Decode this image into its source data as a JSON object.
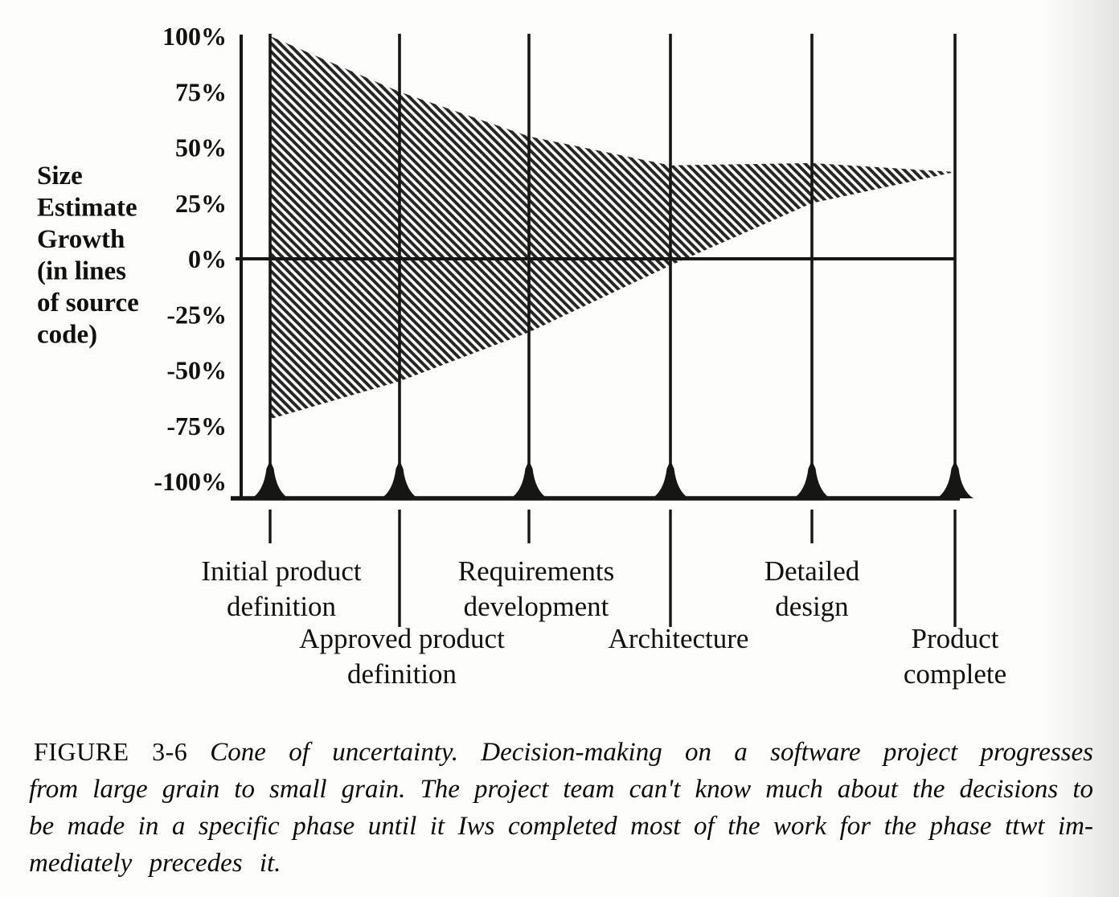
{
  "colors": {
    "ink": "#161616",
    "paper": "#fdfdfc"
  },
  "figure": {
    "caption": {
      "figure_label": "FIGURE 3-6",
      "line1_rest": "Cone of uncertainty. Decision-making on a software project progresses",
      "lines": [
        "from large grain to small grain. The project team can't know much about the decisions to",
        "be made in a specific phase until it Iws completed most of the work for the phase ttwt im-",
        "mediately precedes it."
      ]
    }
  },
  "chart_data": {
    "type": "area",
    "title": "",
    "ylabel": "Size Estimate Growth (in lines of source code)",
    "ylabel_lines": [
      "Size",
      "Estimate",
      "Growth",
      "(in lines",
      "of source",
      "code)"
    ],
    "ylim": [
      -100,
      100
    ],
    "grid": false,
    "legend": "none",
    "fill_style": "diagonal-hatch",
    "y_ticks": [
      {
        "label": "100%",
        "value": 100
      },
      {
        "label": "75%",
        "value": 75
      },
      {
        "label": "50%",
        "value": 50
      },
      {
        "label": "25%",
        "value": 25
      },
      {
        "label": "0%",
        "value": 0
      },
      {
        "label": "-25%",
        "value": -25
      },
      {
        "label": "-50%",
        "value": -50
      },
      {
        "label": "-75%",
        "value": -75
      },
      {
        "label": "-100%",
        "value": -100
      }
    ],
    "categories": [
      "Initial product definition",
      "Approved product definition",
      "Requirements development",
      "Architecture",
      "Detailed design",
      "Product complete"
    ],
    "milestones": [
      {
        "label_lines": [
          "Initial product",
          "definition"
        ],
        "row": 1
      },
      {
        "label_lines": [
          "Approved product",
          "definition"
        ],
        "row": 2
      },
      {
        "label_lines": [
          "Requirements",
          "development"
        ],
        "row": 1
      },
      {
        "label_lines": [
          "Architecture"
        ],
        "row": 2
      },
      {
        "label_lines": [
          "Detailed",
          "design"
        ],
        "row": 1
      },
      {
        "label_lines": [
          "Product",
          "complete"
        ],
        "row": 2
      }
    ],
    "series": [
      {
        "name": "upper bound (% size estimate growth)",
        "values": [
          100,
          75,
          55,
          42,
          43,
          39
        ]
      },
      {
        "name": "lower bound (% size estimate growth)",
        "values": [
          -72,
          -55,
          -33,
          -3,
          25,
          39
        ]
      }
    ]
  }
}
